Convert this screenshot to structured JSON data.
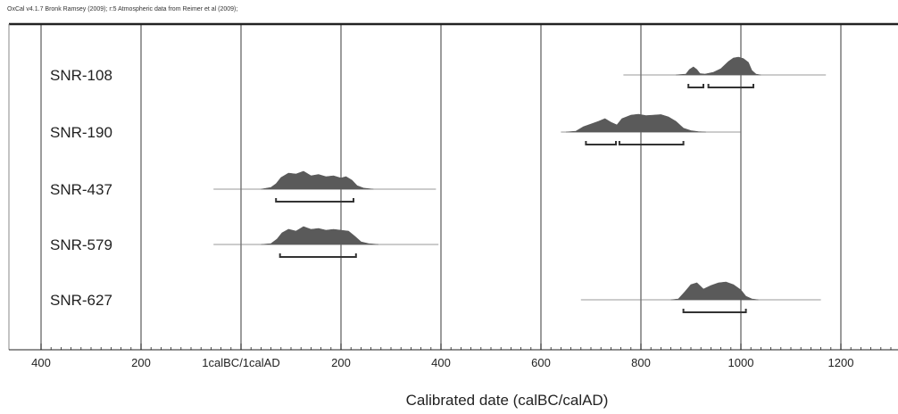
{
  "credit": "OxCal v4.1.7 Bronk Ramsey (2009); r:5 Atmospheric data from Reimer et al (2009);",
  "colors": {
    "fill": "#5a5a5a",
    "line": "#333333",
    "grid": "#222222",
    "range": "#555555",
    "background": "#ffffff"
  },
  "chart_data": {
    "type": "area",
    "title": "",
    "xlabel": "Calibrated date (calBC/calAD)",
    "ylabel": "",
    "xlim": [
      -410,
      1305
    ],
    "grid": true,
    "x_unit": "calendar year (negative = BC, positive = AD)",
    "ticks": [
      {
        "value": -400,
        "label": "400"
      },
      {
        "value": -200,
        "label": "200"
      },
      {
        "value": 0,
        "label": "1calBC/1calAD"
      },
      {
        "value": 200,
        "label": "200"
      },
      {
        "value": 400,
        "label": "400"
      },
      {
        "value": 600,
        "label": "600"
      },
      {
        "value": 800,
        "label": "800"
      },
      {
        "value": 1000,
        "label": "1000"
      },
      {
        "value": 1200,
        "label": "1200"
      }
    ],
    "series": [
      {
        "name": "SNR-108",
        "prior_range": [
          765,
          1170
        ],
        "ranges_2sigma": [
          [
            895,
            925
          ],
          [
            935,
            1025
          ]
        ],
        "density": [
          [
            870,
            0
          ],
          [
            890,
            0.05
          ],
          [
            897,
            0.3
          ],
          [
            905,
            0.45
          ],
          [
            912,
            0.3
          ],
          [
            918,
            0.08
          ],
          [
            928,
            0.05
          ],
          [
            945,
            0.15
          ],
          [
            960,
            0.35
          ],
          [
            975,
            0.75
          ],
          [
            985,
            0.95
          ],
          [
            995,
            1.0
          ],
          [
            1005,
            0.92
          ],
          [
            1015,
            0.7
          ],
          [
            1022,
            0.25
          ],
          [
            1030,
            0.05
          ],
          [
            1040,
            0
          ]
        ]
      },
      {
        "name": "SNR-190",
        "prior_range": [
          640,
          1000
        ],
        "ranges_2sigma": [
          [
            690,
            750
          ],
          [
            757,
            885
          ]
        ],
        "density": [
          [
            650,
            0
          ],
          [
            670,
            0.05
          ],
          [
            685,
            0.3
          ],
          [
            700,
            0.45
          ],
          [
            715,
            0.6
          ],
          [
            728,
            0.75
          ],
          [
            740,
            0.55
          ],
          [
            752,
            0.4
          ],
          [
            762,
            0.75
          ],
          [
            780,
            0.95
          ],
          [
            795,
            1.0
          ],
          [
            810,
            0.92
          ],
          [
            825,
            0.95
          ],
          [
            840,
            0.98
          ],
          [
            855,
            0.85
          ],
          [
            870,
            0.6
          ],
          [
            885,
            0.22
          ],
          [
            900,
            0.08
          ],
          [
            915,
            0.02
          ],
          [
            930,
            0
          ]
        ]
      },
      {
        "name": "SNR-437",
        "prior_range": [
          -55,
          390
        ],
        "ranges_2sigma": [
          [
            70,
            225
          ]
        ],
        "density": [
          [
            40,
            0
          ],
          [
            60,
            0.1
          ],
          [
            70,
            0.3
          ],
          [
            80,
            0.65
          ],
          [
            95,
            0.9
          ],
          [
            110,
            0.85
          ],
          [
            125,
            1.0
          ],
          [
            140,
            0.75
          ],
          [
            155,
            0.82
          ],
          [
            170,
            0.7
          ],
          [
            185,
            0.75
          ],
          [
            200,
            0.62
          ],
          [
            210,
            0.7
          ],
          [
            222,
            0.5
          ],
          [
            232,
            0.2
          ],
          [
            245,
            0.06
          ],
          [
            265,
            0
          ]
        ]
      },
      {
        "name": "SNR-579",
        "prior_range": [
          -55,
          395
        ],
        "ranges_2sigma": [
          [
            78,
            230
          ]
        ],
        "density": [
          [
            40,
            0
          ],
          [
            60,
            0.05
          ],
          [
            72,
            0.3
          ],
          [
            82,
            0.65
          ],
          [
            95,
            0.85
          ],
          [
            110,
            0.75
          ],
          [
            125,
            1.0
          ],
          [
            140,
            0.85
          ],
          [
            155,
            0.9
          ],
          [
            170,
            0.8
          ],
          [
            185,
            0.85
          ],
          [
            200,
            0.8
          ],
          [
            215,
            0.75
          ],
          [
            228,
            0.45
          ],
          [
            240,
            0.15
          ],
          [
            255,
            0.05
          ],
          [
            275,
            0
          ]
        ]
      },
      {
        "name": "SNR-627",
        "prior_range": [
          680,
          1160
        ],
        "ranges_2sigma": [
          [
            885,
            1010
          ]
        ],
        "density": [
          [
            860,
            0
          ],
          [
            875,
            0.05
          ],
          [
            888,
            0.45
          ],
          [
            900,
            0.85
          ],
          [
            912,
            0.95
          ],
          [
            925,
            0.6
          ],
          [
            940,
            0.8
          ],
          [
            955,
            0.95
          ],
          [
            970,
            1.0
          ],
          [
            985,
            0.85
          ],
          [
            1000,
            0.55
          ],
          [
            1010,
            0.2
          ],
          [
            1022,
            0.05
          ],
          [
            1035,
            0
          ]
        ]
      }
    ]
  }
}
